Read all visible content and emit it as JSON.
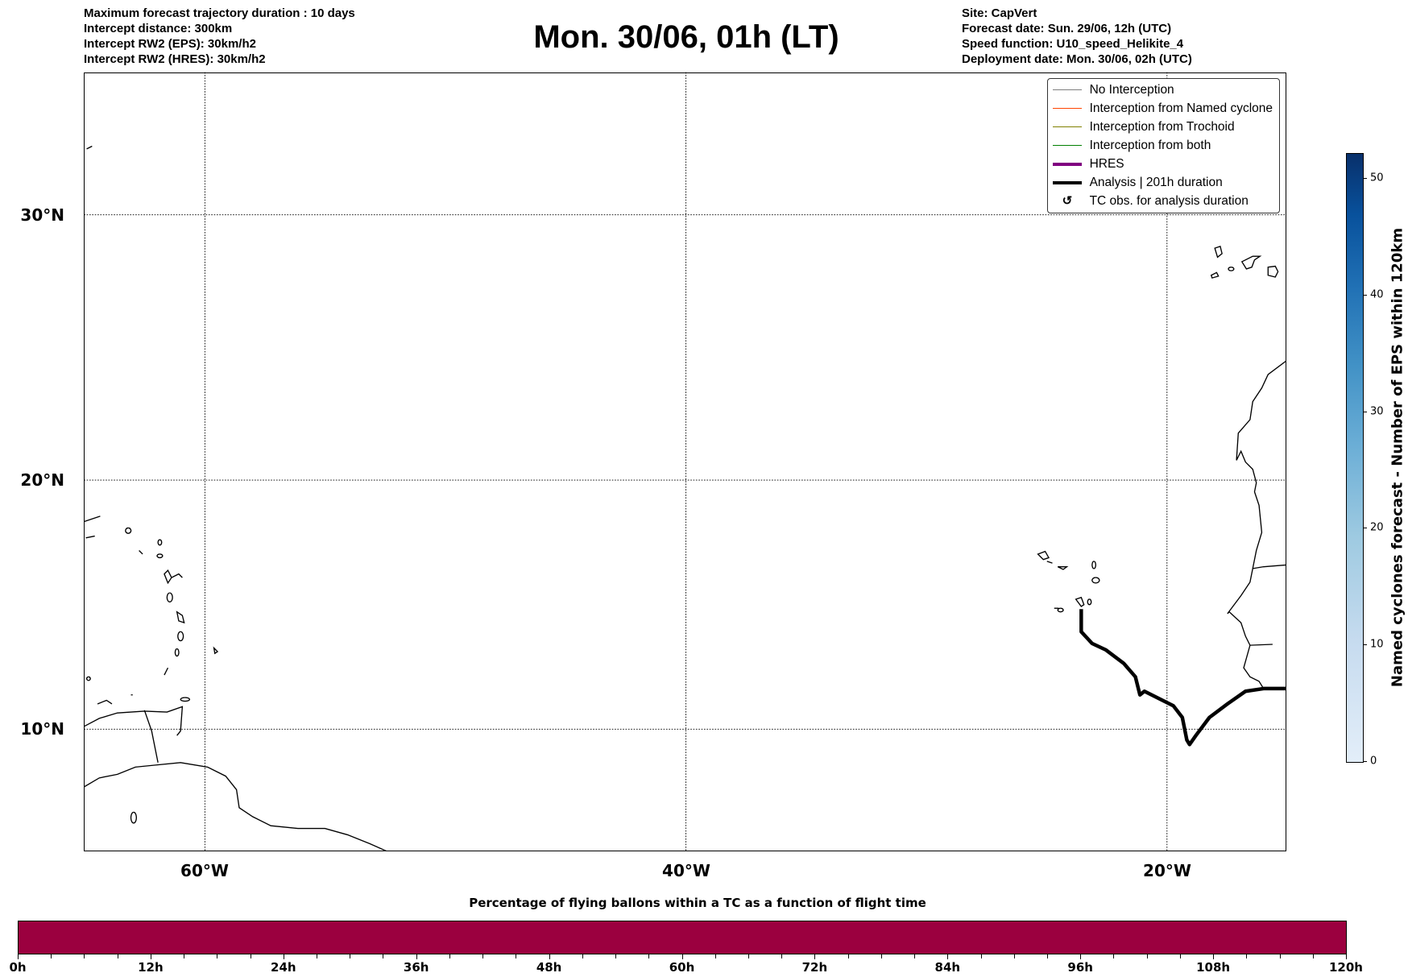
{
  "header": {
    "left": [
      "Maximum forecast trajectory duration : 10 days",
      "Intercept distance: 300km",
      "Intercept RW2 (EPS):  30km/h2",
      "Intercept RW2 (HRES): 30km/h2"
    ],
    "title": "Mon. 30/06, 01h (LT)",
    "right": [
      "Site: CapVert",
      "Forecast date: Sun. 29/06, 12h (UTC)",
      "Speed function: U10_speed_Helikite_4",
      "Deployment date: Mon. 30/06, 02h (UTC)"
    ]
  },
  "map": {
    "lat_labels": [
      "30°N",
      "20°N",
      "10°N"
    ],
    "lon_labels": [
      "60°W",
      "40°W",
      "20°W"
    ]
  },
  "legend": {
    "items": [
      {
        "label": "No Interception",
        "color": "#7f7f7f"
      },
      {
        "label": "Interception from Named cyclone",
        "color": "#ff4500"
      },
      {
        "label": "Interception from Trochoid",
        "color": "#808000"
      },
      {
        "label": "Interception from both",
        "color": "#008000"
      },
      {
        "label": "HRES",
        "color": "#800080"
      },
      {
        "label": "Analysis | 201h duration",
        "color": "#000000"
      },
      {
        "label": "TC obs. for analysis duration",
        "icon": "cyclone-symbol-icon"
      }
    ]
  },
  "colorbar": {
    "title": "Named cyclones forecast - Number of EPS within 120km",
    "ticks": [
      "0",
      "10",
      "20",
      "30",
      "40",
      "50"
    ],
    "low_color": "#e3eef9",
    "high_color": "#08306b"
  },
  "flight_bar": {
    "title": "Percentage of flying ballons within a TC as a function of flight time",
    "ticks": [
      "0h",
      "12h",
      "24h",
      "36h",
      "48h",
      "60h",
      "72h",
      "84h",
      "96h",
      "108h",
      "120h"
    ],
    "color": "#9b003f"
  }
}
